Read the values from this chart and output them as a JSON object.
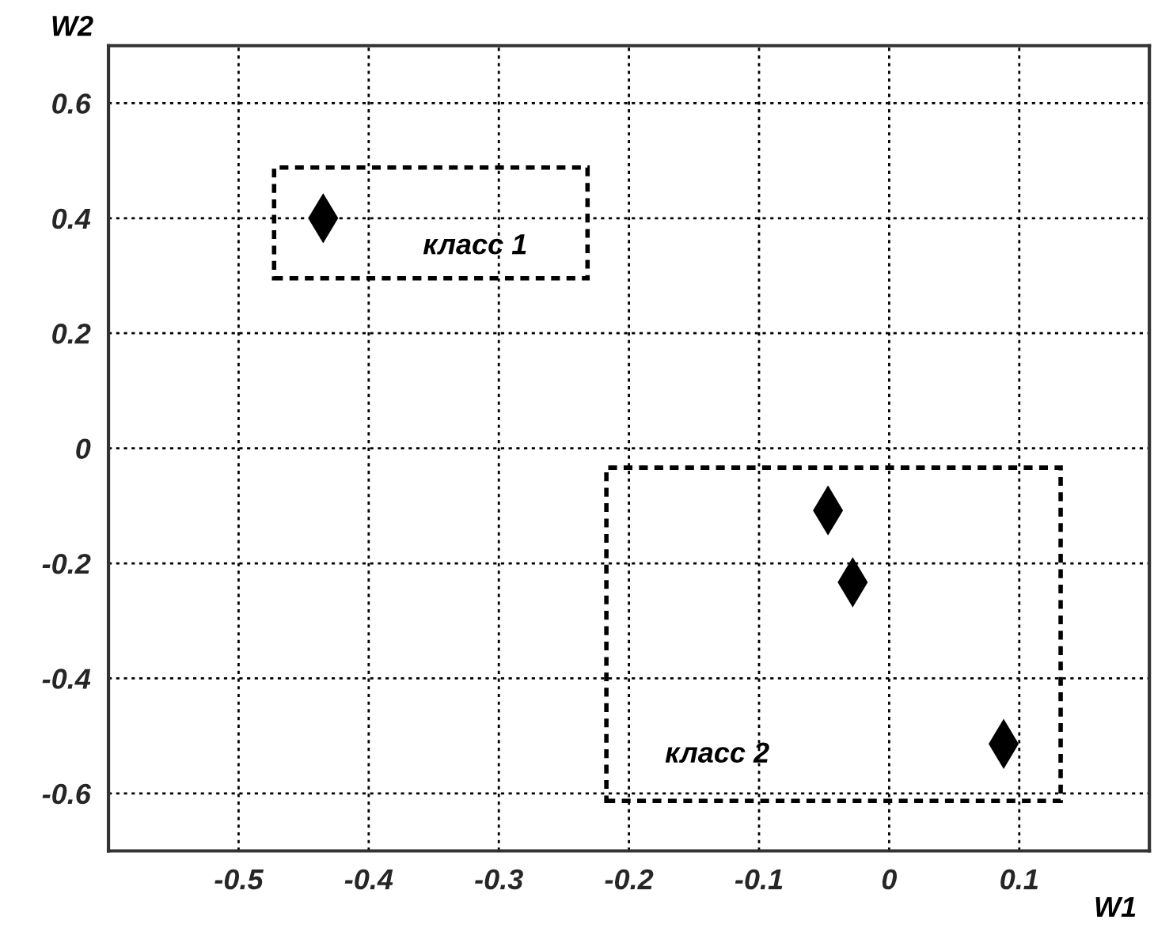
{
  "chart_data": {
    "type": "scatter",
    "xlabel": "W1",
    "ylabel": "W2",
    "xlim": [
      -0.6,
      0.2
    ],
    "ylim": [
      -0.7,
      0.7
    ],
    "xticks": [
      -0.5,
      -0.4,
      -0.3,
      -0.2,
      -0.1,
      0,
      0.1
    ],
    "yticks": [
      -0.6,
      -0.4,
      -0.2,
      0,
      0.2,
      0.4,
      0.6
    ],
    "grid": true,
    "marker": "diamond",
    "series": [
      {
        "color": "#000000",
        "x": [
          -0.435
        ],
        "values": [
          0.4
        ]
      },
      {
        "color": "#000000",
        "x": [
          -0.047,
          -0.028,
          0.088
        ],
        "values": [
          -0.108,
          -0.233,
          -0.514
        ]
      }
    ],
    "annotations": [
      "класс 1",
      "класс 2"
    ]
  }
}
